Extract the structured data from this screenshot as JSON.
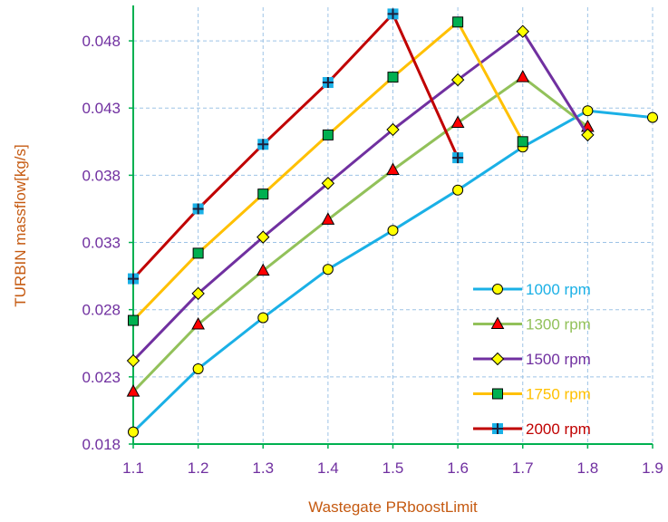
{
  "chart_data": {
    "type": "line",
    "title": "",
    "xlabel": "Wastegate PRboostLimit",
    "ylabel": "TURBIN massflow[kg/s]",
    "xlim": [
      1.1,
      1.9
    ],
    "ylim": [
      0.018,
      0.0505
    ],
    "x_ticks": [
      "1.1",
      "1.2",
      "1.3",
      "1.4",
      "1.5",
      "1.6",
      "1.7",
      "1.8",
      "1.9"
    ],
    "y_ticks": [
      "0.018",
      "0.023",
      "0.028",
      "0.033",
      "0.038",
      "0.043",
      "0.048"
    ],
    "grid": true,
    "legend_position": "bottom-right",
    "colors": {
      "axis_text": "#7030a0",
      "axis_title": "#c55a11",
      "axis_line": "#00b050",
      "grid": "#9dc3e6"
    },
    "series": [
      {
        "name": "1000 rpm",
        "color": "#1ab0e6",
        "marker": "circle",
        "marker_fill": "#ffff00",
        "x": [
          1.1,
          1.2,
          1.3,
          1.4,
          1.5,
          1.6,
          1.7,
          1.8,
          1.9
        ],
        "y": [
          0.0189,
          0.0236,
          0.0274,
          0.031,
          0.0339,
          0.0369,
          0.0401,
          0.0428,
          0.0423
        ]
      },
      {
        "name": "1300 rpm",
        "color": "#92c15a",
        "marker": "triangle",
        "marker_fill": "#ff0000",
        "x": [
          1.1,
          1.2,
          1.3,
          1.4,
          1.5,
          1.6,
          1.7,
          1.8
        ],
        "y": [
          0.0219,
          0.0269,
          0.0309,
          0.0347,
          0.0384,
          0.0419,
          0.0453,
          0.0416
        ]
      },
      {
        "name": "1500 rpm",
        "color": "#7030a0",
        "marker": "diamond",
        "marker_fill": "#ffff00",
        "x": [
          1.1,
          1.2,
          1.3,
          1.4,
          1.5,
          1.6,
          1.7,
          1.8
        ],
        "y": [
          0.0242,
          0.0292,
          0.0334,
          0.0374,
          0.0414,
          0.0451,
          0.0487,
          0.041
        ]
      },
      {
        "name": "1750 rpm",
        "color": "#ffc000",
        "marker": "square",
        "marker_fill": "#00b050",
        "x": [
          1.1,
          1.2,
          1.3,
          1.4,
          1.5,
          1.6,
          1.7
        ],
        "y": [
          0.0272,
          0.0322,
          0.0366,
          0.041,
          0.0453,
          0.0494,
          0.0405
        ]
      },
      {
        "name": "2000 rpm",
        "color": "#c00000",
        "marker": "plus-square",
        "marker_fill": "#1ab0e6",
        "x": [
          1.1,
          1.2,
          1.3,
          1.4,
          1.5,
          1.6
        ],
        "y": [
          0.0303,
          0.0355,
          0.0403,
          0.0449,
          0.05,
          0.0393
        ]
      }
    ]
  }
}
